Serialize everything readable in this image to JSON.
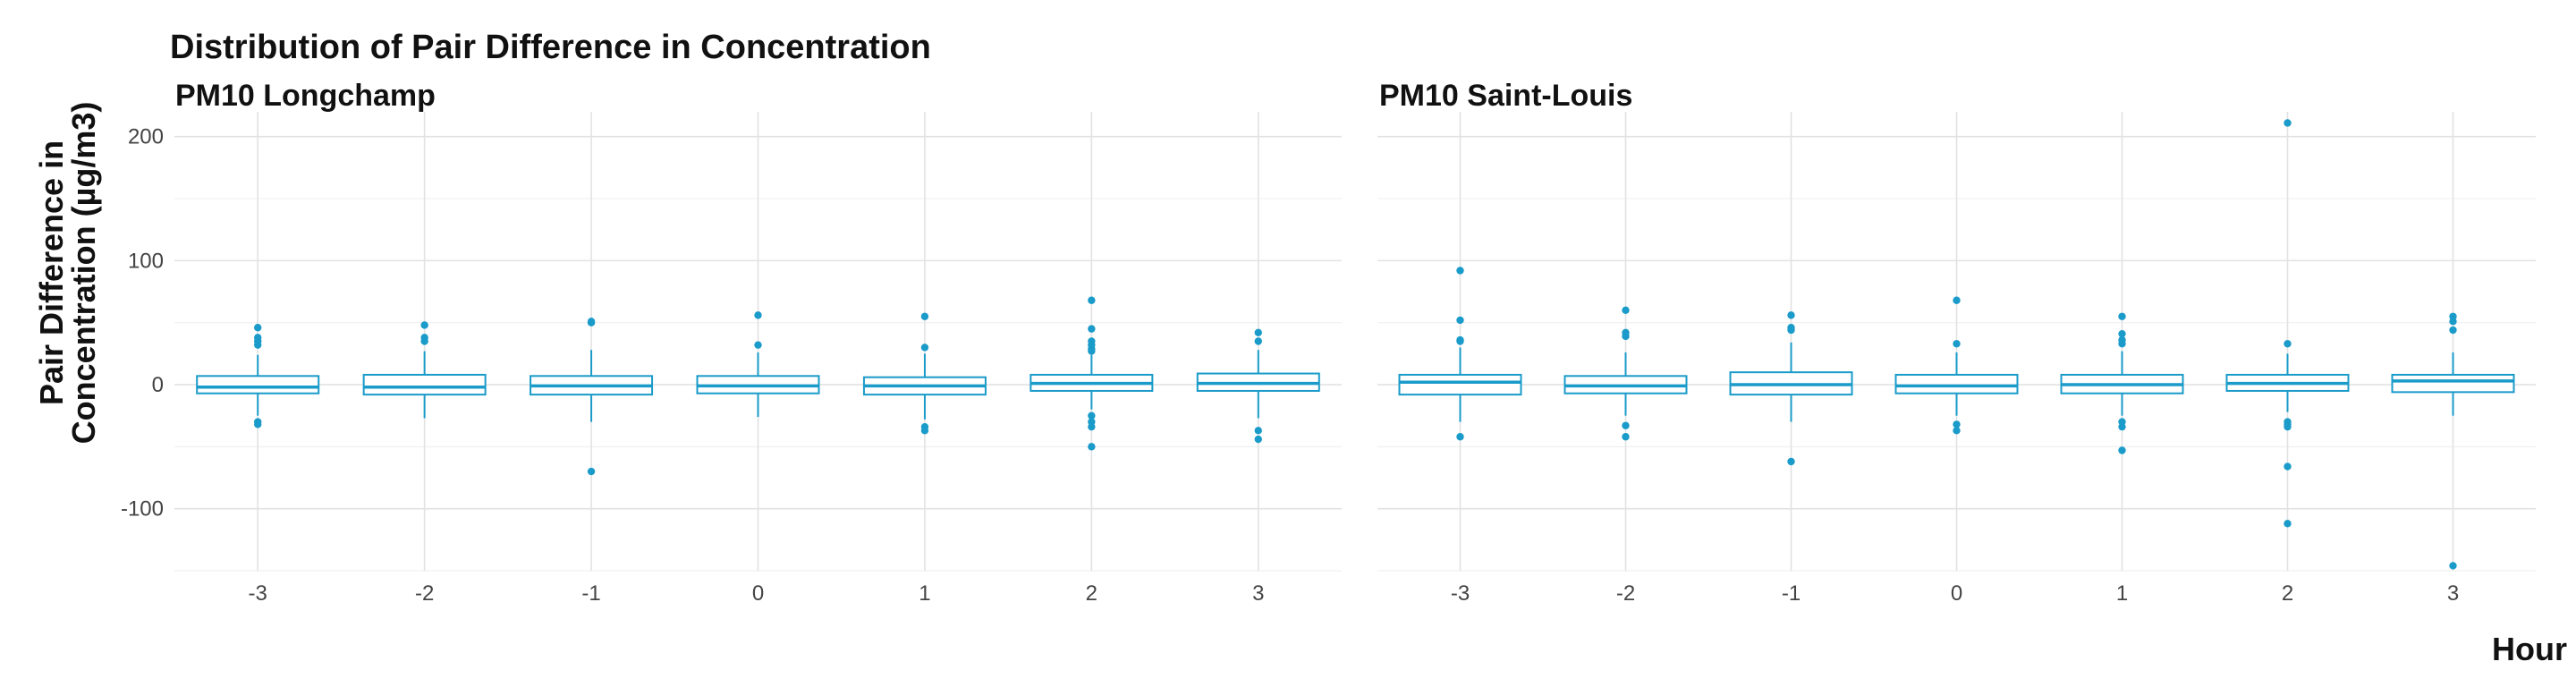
{
  "chart_data": {
    "type": "box",
    "title": "Distribution of Pair Difference in Concentration",
    "xlabel": "Hour",
    "ylabel": "Pair Difference in Concentration (µg/m3)",
    "ylabel_lines": [
      "Pair Difference in",
      "Concentration (µg/m3)"
    ],
    "categories": [
      "-3",
      "-2",
      "-1",
      "0",
      "1",
      "2",
      "3"
    ],
    "ylim": [
      -150,
      220
    ],
    "yticks": [
      -100,
      0,
      100,
      200
    ],
    "ytick_labels": [
      "-100",
      "0",
      "100",
      "200"
    ],
    "color": "#1a9bc9",
    "grid": true,
    "panels": [
      {
        "name": "PM10 Longchamp",
        "boxes": [
          {
            "x": "-3",
            "q1": -7,
            "median": -2,
            "q3": 7,
            "whisker_low": -25,
            "whisker_high": 24,
            "outliers": [
              46,
              38,
              35,
              32,
              -30,
              -32
            ]
          },
          {
            "x": "-2",
            "q1": -8,
            "median": -2,
            "q3": 8,
            "whisker_low": -27,
            "whisker_high": 27,
            "outliers": [
              48,
              38,
              35
            ]
          },
          {
            "x": "-1",
            "q1": -8,
            "median": -1,
            "q3": 7,
            "whisker_low": -30,
            "whisker_high": 28,
            "outliers": [
              51,
              50,
              -70
            ]
          },
          {
            "x": "0",
            "q1": -7,
            "median": -1,
            "q3": 7,
            "whisker_low": -26,
            "whisker_high": 26,
            "outliers": [
              56,
              32
            ]
          },
          {
            "x": "1",
            "q1": -8,
            "median": -1,
            "q3": 6,
            "whisker_low": -28,
            "whisker_high": 25,
            "outliers": [
              55,
              30,
              -34,
              -37
            ]
          },
          {
            "x": "2",
            "q1": -5,
            "median": 1,
            "q3": 8,
            "whisker_low": -20,
            "whisker_high": 24,
            "outliers": [
              68,
              45,
              35,
              32,
              29,
              27,
              -25,
              -30,
              -34,
              -50
            ]
          },
          {
            "x": "3",
            "q1": -5,
            "median": 1,
            "q3": 9,
            "whisker_low": -27,
            "whisker_high": 28,
            "outliers": [
              42,
              35,
              -37,
              -44
            ]
          }
        ]
      },
      {
        "name": "PM10 Saint-Louis",
        "boxes": [
          {
            "x": "-3",
            "q1": -8,
            "median": 2,
            "q3": 8,
            "whisker_low": -30,
            "whisker_high": 30,
            "outliers": [
              92,
              52,
              36,
              35,
              -42
            ]
          },
          {
            "x": "-2",
            "q1": -7,
            "median": -1,
            "q3": 7,
            "whisker_low": -25,
            "whisker_high": 26,
            "outliers": [
              60,
              42,
              39,
              -33,
              -42
            ]
          },
          {
            "x": "-1",
            "q1": -8,
            "median": 0,
            "q3": 10,
            "whisker_low": -30,
            "whisker_high": 34,
            "outliers": [
              56,
              46,
              44,
              -62
            ]
          },
          {
            "x": "0",
            "q1": -7,
            "median": -1,
            "q3": 8,
            "whisker_low": -25,
            "whisker_high": 26,
            "outliers": [
              68,
              33,
              -32,
              -37
            ]
          },
          {
            "x": "1",
            "q1": -7,
            "median": 0,
            "q3": 8,
            "whisker_low": -25,
            "whisker_high": 27,
            "outliers": [
              55,
              41,
              36,
              33,
              -30,
              -34,
              -53
            ]
          },
          {
            "x": "2",
            "q1": -5,
            "median": 1,
            "q3": 8,
            "whisker_low": -22,
            "whisker_high": 25,
            "outliers": [
              211,
              33,
              -30,
              -32,
              -34,
              -66,
              -112
            ]
          },
          {
            "x": "3",
            "q1": -6,
            "median": 3,
            "q3": 8,
            "whisker_low": -25,
            "whisker_high": 26,
            "outliers": [
              55,
              51,
              44,
              -146
            ]
          }
        ]
      }
    ]
  }
}
